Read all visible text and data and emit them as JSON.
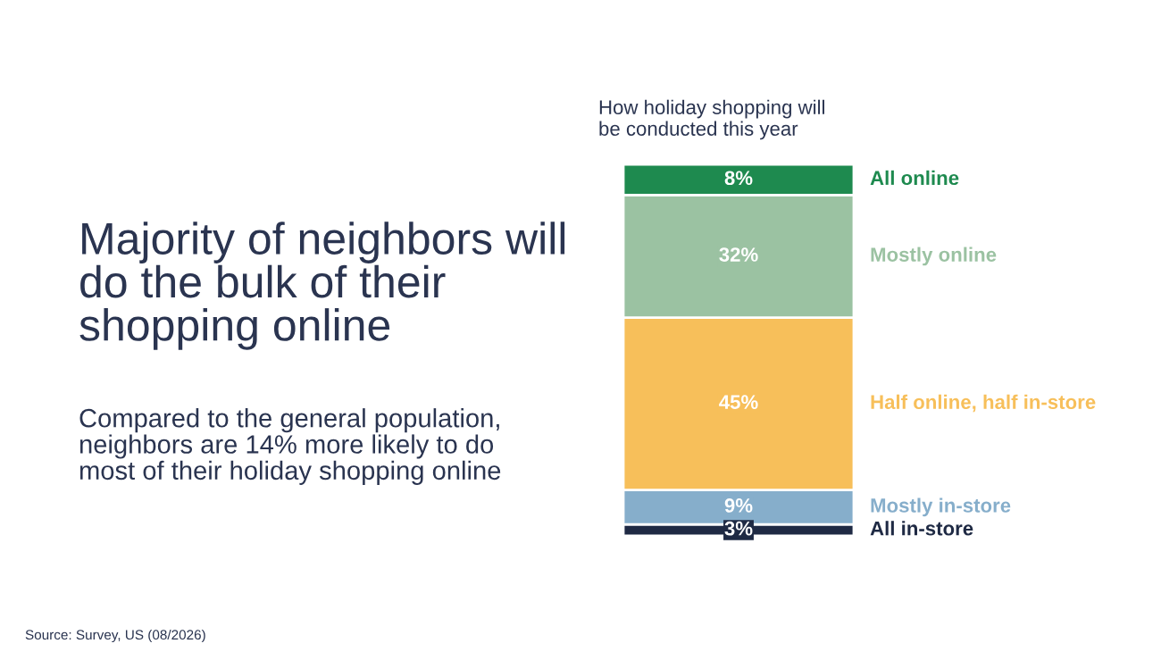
{
  "chart_data": {
    "type": "bar",
    "stacked": true,
    "title": "Majority of neighbors will\ndo the bulk of their\nshopping online",
    "subtitle": "Compared to the general population,\nneighbors are 14% more likely to do\nmost of their holiday shopping online",
    "annotations": [
      "How holiday shopping will\nbe conducted this year",
      "Source: Survey, US (08/2026)"
    ],
    "categories": [
      null
    ],
    "legend": false,
    "series": [
      {
        "name": "All in-store",
        "color": "#1f2a44",
        "values": [
          3
        ],
        "value_labels": [
          "3%"
        ]
      },
      {
        "name": "Mostly in-store",
        "color": "#86aecb",
        "values": [
          9
        ],
        "value_labels": [
          "9%"
        ]
      },
      {
        "name": "Half online, half in-store",
        "color": "#f7bf5a",
        "values": [
          45
        ],
        "value_labels": [
          "45%"
        ]
      },
      {
        "name": "Mostly online",
        "color": "#9bc2a2",
        "values": [
          32
        ],
        "value_labels": [
          "32%"
        ]
      },
      {
        "name": "All online",
        "color": "#1e8a4f",
        "values": [
          8
        ],
        "value_labels": [
          "8%"
        ]
      }
    ]
  }
}
